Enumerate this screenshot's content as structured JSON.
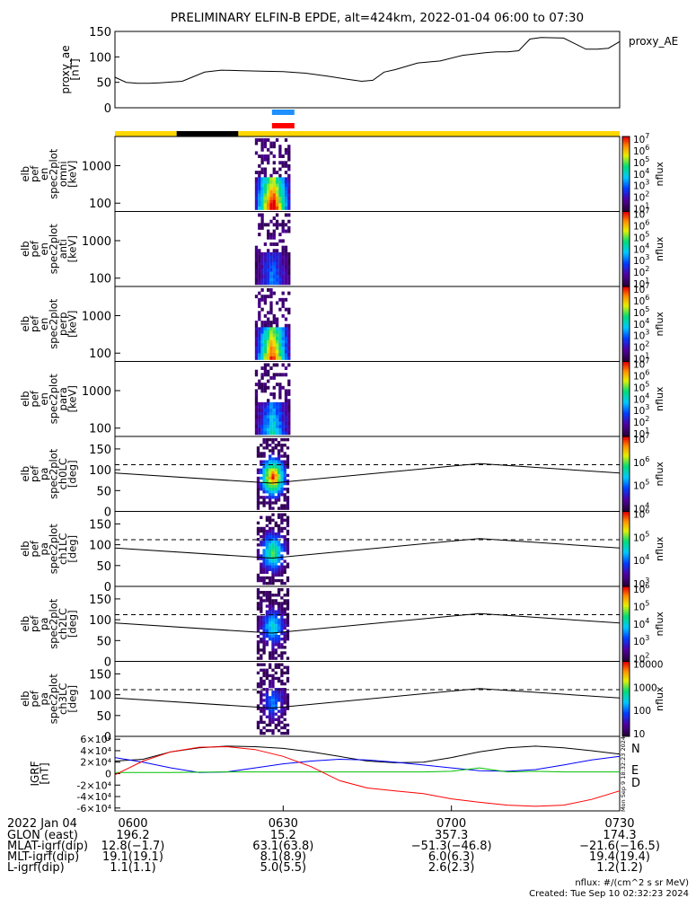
{
  "title": "PRELIMINARY ELFIN-B EPDE, alt=424km, 2022-01-04 06:00 to 07:30",
  "chart_data": {
    "type": "line",
    "time_range": [
      "06:00",
      "07:30"
    ],
    "proxy_ae": {
      "ylabel": [
        "proxy_ae",
        "[nT]"
      ],
      "legend": "proxy_AE",
      "ylim": [
        0,
        150
      ],
      "yticks": [
        "0",
        "50",
        "100",
        "150"
      ],
      "t": [
        0,
        2,
        4,
        6,
        8,
        12,
        16,
        19,
        22,
        26,
        30,
        34,
        38,
        42,
        44,
        46,
        48,
        50,
        54,
        58,
        62,
        66,
        68,
        70,
        72,
        74,
        76,
        80,
        82,
        84,
        86,
        88,
        90
      ],
      "values": [
        60,
        50,
        48,
        48,
        49,
        52,
        70,
        74,
        73,
        72,
        71,
        68,
        62,
        55,
        52,
        54,
        70,
        75,
        88,
        92,
        103,
        108,
        110,
        110,
        112,
        135,
        138,
        137,
        126,
        115,
        115,
        117,
        130
      ]
    },
    "bars": {
      "blue_mark": [
        "06:28",
        "06:32"
      ],
      "red_mark": [
        "06:28",
        "06:32"
      ],
      "segments": [
        {
          "start": "06:00",
          "end": "06:11",
          "color": "#ffd700"
        },
        {
          "start": "06:11",
          "end": "06:22",
          "color": "#000000"
        },
        {
          "start": "06:22",
          "end": "07:30",
          "color": "#ffd700"
        }
      ]
    },
    "spectrograms": [
      {
        "ylabel": [
          "elb",
          "pef",
          "en",
          "spec2plot",
          "omni",
          "[keV]"
        ],
        "yticks": [
          "100",
          "1000"
        ],
        "yunit": "keV",
        "cbar": [
          "10",
          "10",
          "10",
          "10",
          "10",
          "10",
          "10"
        ],
        "cbar_exp": [
          "1",
          "2",
          "3",
          "4",
          "5",
          "6",
          "7"
        ],
        "cbar_label": "nflux",
        "intensity": 1.0
      },
      {
        "ylabel": [
          "elb",
          "pef",
          "en",
          "spec2plot",
          "anti",
          "[keV]"
        ],
        "yticks": [
          "100",
          "1000"
        ],
        "yunit": "keV",
        "cbar": [
          "10",
          "10",
          "10",
          "10",
          "10",
          "10",
          "10"
        ],
        "cbar_exp": [
          "1",
          "2",
          "3",
          "4",
          "5",
          "6",
          "7"
        ],
        "cbar_label": "nflux",
        "intensity": 0.35
      },
      {
        "ylabel": [
          "elb",
          "pef",
          "en",
          "spec2plot",
          "perp",
          "[keV]"
        ],
        "yticks": [
          "100",
          "1000"
        ],
        "yunit": "keV",
        "cbar": [
          "10",
          "10",
          "10",
          "10",
          "10",
          "10",
          "10"
        ],
        "cbar_exp": [
          "1",
          "2",
          "3",
          "4",
          "5",
          "6",
          "7"
        ],
        "cbar_label": "nflux",
        "intensity": 0.9
      },
      {
        "ylabel": [
          "elb",
          "pef",
          "en",
          "spec2plot",
          "para",
          "[keV]"
        ],
        "yticks": [
          "100",
          "1000"
        ],
        "yunit": "keV",
        "cbar": [
          "10",
          "10",
          "10",
          "10",
          "10",
          "10",
          "10"
        ],
        "cbar_exp": [
          "1",
          "2",
          "3",
          "4",
          "5",
          "6",
          "7"
        ],
        "cbar_label": "nflux",
        "intensity": 0.5
      }
    ],
    "pitch_angles": [
      {
        "ylabel": [
          "elb",
          "pef",
          "pa",
          "spec2plot",
          "ch0LC",
          "[deg]"
        ],
        "yticks": [
          "0",
          "50",
          "100",
          "150"
        ],
        "cbar": [
          "10",
          "10",
          "10",
          "10"
        ],
        "cbar_exp": [
          "4",
          "5",
          "6",
          "7"
        ],
        "cbar_label": "nflux",
        "intensity": 1.0
      },
      {
        "ylabel": [
          "elb",
          "pef",
          "pa",
          "spec2plot",
          "ch1LC",
          "[deg]"
        ],
        "yticks": [
          "0",
          "50",
          "100",
          "150"
        ],
        "cbar": [
          "10",
          "10",
          "10",
          "10"
        ],
        "cbar_exp": [
          "3",
          "4",
          "5",
          "6"
        ],
        "cbar_label": "nflux",
        "intensity": 0.7
      },
      {
        "ylabel": [
          "elb",
          "pef",
          "pa",
          "spec2plot",
          "ch2LC",
          "[deg]"
        ],
        "yticks": [
          "0",
          "50",
          "100",
          "150"
        ],
        "cbar": [
          "10",
          "10",
          "10",
          "10",
          "10"
        ],
        "cbar_exp": [
          "2",
          "3",
          "4",
          "5",
          "6"
        ],
        "cbar_label": "nflux",
        "intensity": 0.55
      },
      {
        "ylabel": [
          "elb",
          "pef",
          "pa",
          "spec2plot",
          "ch3LC",
          "[deg]"
        ],
        "yticks": [
          "0",
          "50",
          "100",
          "150"
        ],
        "cbar": [
          "10",
          "100",
          "1000",
          "10000"
        ],
        "cbar_exp": [
          "",
          "",
          "",
          ""
        ],
        "cbar_label": "nflux",
        "intensity": 0.4
      }
    ],
    "igrf": {
      "ylabel": [
        "IGRF",
        "[nT]"
      ],
      "yticks": [
        "-6×10⁴",
        "-4×10⁴",
        "-2×10⁴",
        "0",
        "2×10⁴",
        "4×10⁴",
        "6×10⁴"
      ],
      "ylim": [
        -65000,
        65000
      ],
      "legend": [
        {
          "name": "N",
          "color": "#0000ff"
        },
        {
          "name": "E",
          "color": "#00c000"
        },
        {
          "name": "D",
          "color": "#ff0000"
        }
      ],
      "stamp": "Mon Sep  9 18:32:23 2024",
      "t": [
        0,
        5,
        10,
        15,
        20,
        25,
        30,
        35,
        40,
        45,
        50,
        55,
        60,
        65,
        70,
        75,
        80,
        85,
        90
      ],
      "total": [
        22000,
        25000,
        38000,
        45000,
        48000,
        47000,
        44000,
        38000,
        30000,
        22000,
        19000,
        20000,
        28000,
        38000,
        45000,
        48000,
        45000,
        40000,
        34000
      ],
      "N": [
        28000,
        20000,
        10000,
        2000,
        3000,
        10000,
        17000,
        22000,
        25000,
        24000,
        20000,
        15000,
        10000,
        5000,
        4000,
        7000,
        15000,
        24000,
        30000
      ],
      "E": [
        2000,
        2000,
        2000,
        2500,
        3000,
        3000,
        3000,
        3000,
        3000,
        3000,
        3000,
        3000,
        4000,
        10000,
        3000,
        4000,
        3000,
        3000,
        3000
      ],
      "D": [
        -2000,
        22000,
        38000,
        46000,
        47000,
        42000,
        30000,
        12000,
        -12000,
        -25000,
        -30000,
        -35000,
        -44000,
        -50000,
        -55000,
        -57000,
        -55000,
        -45000,
        -30000
      ]
    }
  },
  "footer": {
    "rows": [
      {
        "label": "2022 Jan 04",
        "values": [
          "0600",
          "0630",
          "0700",
          "0730"
        ]
      },
      {
        "label": "GLON (east)",
        "values": [
          "196.2",
          "15.2",
          "357.3",
          "174.3"
        ]
      },
      {
        "label": "MLAT-igrf(dip)",
        "values": [
          "12.8(−1.7)",
          "63.1(63.8)",
          "−51.3(−46.8)",
          "−21.6(−16.5)"
        ]
      },
      {
        "label": "MLT-igrf(dip)",
        "values": [
          "19.1(19.1)",
          "8.1(8.9)",
          "6.0(6.3)",
          "19.4(19.4)"
        ]
      },
      {
        "label": "L-igrf(dip)",
        "values": [
          "1.1(1.1)",
          "5.0(5.5)",
          "2.6(2.3)",
          "1.2(1.2)"
        ]
      }
    ],
    "nflux_units": "nflux: #/(cm^2 s sr MeV)",
    "created": "Created: Tue Sep 10 02:32:23 2024"
  }
}
